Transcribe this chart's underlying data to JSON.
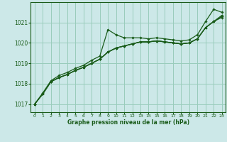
{
  "title": "Graphe pression niveau de la mer (hPa)",
  "bg_color": "#cce8e8",
  "grid_color": "#99ccbb",
  "line_color": "#1a5c1a",
  "marker_color": "#1a5c1a",
  "xlim": [
    -0.5,
    23.5
  ],
  "ylim": [
    1016.6,
    1022.0
  ],
  "yticks": [
    1017,
    1018,
    1019,
    1020,
    1021
  ],
  "xticks": [
    0,
    1,
    2,
    3,
    4,
    5,
    6,
    7,
    8,
    9,
    10,
    11,
    12,
    13,
    14,
    15,
    16,
    17,
    18,
    19,
    20,
    21,
    22,
    23
  ],
  "series": [
    [
      1017.0,
      1017.55,
      1018.15,
      1018.4,
      1018.55,
      1018.75,
      1018.9,
      1019.15,
      1019.35,
      1020.65,
      1020.4,
      1020.25,
      1020.25,
      1020.25,
      1020.2,
      1020.25,
      1020.2,
      1020.15,
      1020.1,
      1020.15,
      1020.4,
      1021.05,
      1021.65,
      1021.5
    ],
    [
      1017.0,
      1017.5,
      1018.1,
      1018.3,
      1018.45,
      1018.65,
      1018.8,
      1019.0,
      1019.2,
      1019.55,
      1019.75,
      1019.85,
      1019.95,
      1020.05,
      1020.05,
      1020.1,
      1020.05,
      1020.0,
      1019.95,
      1020.0,
      1020.2,
      1020.75,
      1021.05,
      1021.25
    ],
    [
      1017.0,
      1017.5,
      1018.1,
      1018.3,
      1018.45,
      1018.65,
      1018.8,
      1019.0,
      1019.2,
      1019.55,
      1019.75,
      1019.85,
      1019.95,
      1020.05,
      1020.05,
      1020.1,
      1020.05,
      1020.0,
      1019.95,
      1020.0,
      1020.2,
      1020.75,
      1021.05,
      1021.3
    ],
    [
      1017.0,
      1017.5,
      1018.1,
      1018.3,
      1018.45,
      1018.65,
      1018.8,
      1019.0,
      1019.2,
      1019.55,
      1019.75,
      1019.85,
      1019.95,
      1020.05,
      1020.05,
      1020.1,
      1020.05,
      1020.0,
      1019.95,
      1020.0,
      1020.2,
      1020.75,
      1021.05,
      1021.35
    ]
  ]
}
